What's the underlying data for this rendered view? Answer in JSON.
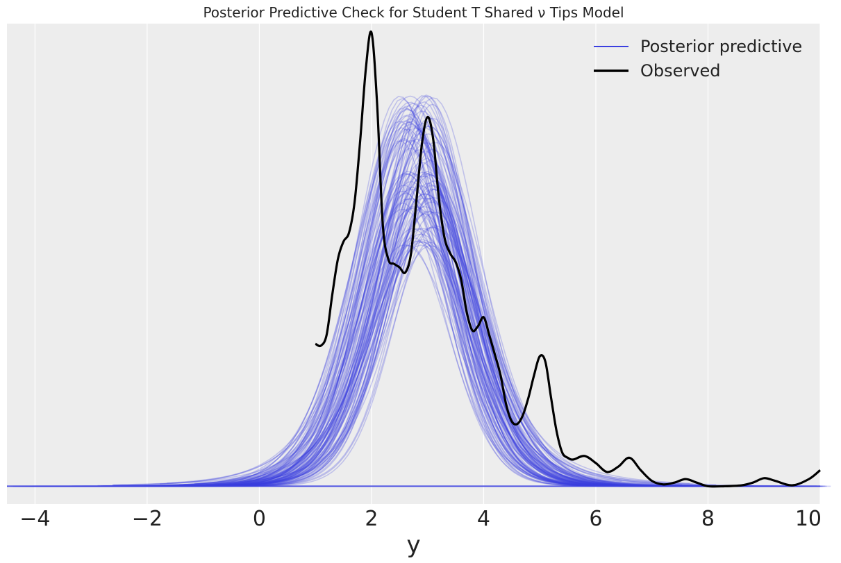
{
  "chart_data": {
    "type": "line",
    "title": "Posterior Predictive Check for Student T Shared ν Tips Model",
    "xlabel": "y",
    "ylabel": "",
    "xlim": [
      -4.5,
      10
    ],
    "ylim": [
      -0.02,
      0.52
    ],
    "xticks": [
      -4,
      -2,
      0,
      2,
      4,
      6,
      8,
      10
    ],
    "xtick_labels": [
      "−4",
      "−2",
      "0",
      "2",
      "4",
      "6",
      "8",
      "10"
    ],
    "grid": "vertical",
    "legend_position": "top-right",
    "colors": {
      "background": "#ededed",
      "grid": "#ffffff",
      "predictive": "#3b3fe0",
      "observed": "#000000"
    },
    "series": [
      {
        "name": "Posterior predictive",
        "style": "thin translucent lines, one per draw",
        "draws": 110
      },
      {
        "name": "Observed",
        "style": "thick black line",
        "x": [
          1.0,
          1.1,
          1.2,
          1.3,
          1.4,
          1.5,
          1.6,
          1.7,
          1.8,
          1.9,
          2.0,
          2.1,
          2.2,
          2.3,
          2.4,
          2.5,
          2.6,
          2.7,
          2.8,
          2.9,
          3.0,
          3.1,
          3.2,
          3.3,
          3.4,
          3.5,
          3.6,
          3.7,
          3.8,
          3.9,
          4.0,
          4.1,
          4.2,
          4.3,
          4.4,
          4.5,
          4.6,
          4.7,
          4.8,
          4.9,
          5.0,
          5.1,
          5.2,
          5.3,
          5.4,
          5.5,
          5.6,
          5.8,
          6.0,
          6.2,
          6.4,
          6.6,
          6.8,
          7.0,
          7.2,
          7.4,
          7.6,
          7.8,
          8.0,
          8.3,
          8.6,
          8.8,
          9.0,
          9.2,
          9.5,
          9.8,
          10.0
        ],
        "y": [
          0.16,
          0.158,
          0.17,
          0.215,
          0.255,
          0.275,
          0.285,
          0.32,
          0.39,
          0.47,
          0.51,
          0.43,
          0.295,
          0.255,
          0.25,
          0.246,
          0.24,
          0.26,
          0.32,
          0.385,
          0.415,
          0.39,
          0.325,
          0.28,
          0.262,
          0.252,
          0.232,
          0.195,
          0.175,
          0.18,
          0.19,
          0.17,
          0.148,
          0.125,
          0.092,
          0.073,
          0.07,
          0.08,
          0.1,
          0.125,
          0.146,
          0.14,
          0.1,
          0.062,
          0.038,
          0.032,
          0.03,
          0.034,
          0.026,
          0.016,
          0.022,
          0.032,
          0.018,
          0.006,
          0.002,
          0.004,
          0.008,
          0.004,
          0.0,
          0.0,
          0.001,
          0.004,
          0.009,
          0.006,
          0.001,
          0.008,
          0.018
        ]
      }
    ]
  }
}
